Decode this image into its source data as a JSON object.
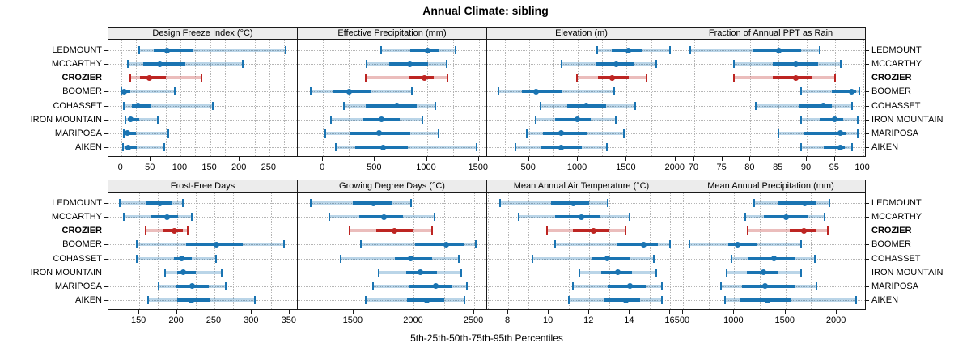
{
  "title": "Annual Climate: sibling",
  "xlabel": "5th-25th-50th-75th-95th Percentiles",
  "sites": [
    "LEDMOUNT",
    "MCCARTHY",
    "CROZIER",
    "BOOMER",
    "COHASSET",
    "IRON MOUNTAIN",
    "MARIPOSA",
    "AIKEN"
  ],
  "highlight_site": "CROZIER",
  "colors": {
    "series": "#1a74b2",
    "highlight": "#bd2522",
    "grid": "#b5b5b5",
    "strip_bg": "#ececec",
    "border": "#1a1a1a",
    "text": "#000000"
  },
  "chart_data": {
    "type": "dotplot-percentiles",
    "percentiles": [
      5,
      25,
      50,
      75,
      95
    ],
    "legend": "CROZIER highlighted in red; all other sites in blue",
    "panels": [
      {
        "title": "Design Freeze Index (°C)",
        "xticks": [
          0,
          50,
          100,
          150,
          200,
          250
        ],
        "grid_step": 25,
        "xlim": [
          -20,
          298
        ],
        "series": [
          {
            "name": "LEDMOUNT",
            "p": [
              30,
              55,
              78,
              122,
              278
            ]
          },
          {
            "name": "MCCARTHY",
            "p": [
              12,
              38,
              65,
              108,
              205
            ]
          },
          {
            "name": "CROZIER",
            "p": [
              15,
              32,
              48,
              75,
              135
            ]
          },
          {
            "name": "BOOMER",
            "p": [
              0,
              2,
              5,
              15,
              90
            ]
          },
          {
            "name": "COHASSET",
            "p": [
              5,
              18,
              28,
              50,
              155
            ]
          },
          {
            "name": "IRON MOUNTAIN",
            "p": [
              7,
              12,
              16,
              30,
              62
            ]
          },
          {
            "name": "MARIPOSA",
            "p": [
              4,
              8,
              11,
              25,
              80
            ]
          },
          {
            "name": "AIKEN",
            "p": [
              3,
              7,
              12,
              26,
              73
            ]
          }
        ]
      },
      {
        "title": "Effective Precipitation (mm)",
        "xticks": [
          0,
          500,
          1000,
          1500
        ],
        "grid_step": 250,
        "xlim": [
          -235,
          1580
        ],
        "series": [
          {
            "name": "LEDMOUNT",
            "p": [
              560,
              840,
              1010,
              1120,
              1280
            ]
          },
          {
            "name": "MCCARTHY",
            "p": [
              420,
              640,
              835,
              1010,
              1190
            ]
          },
          {
            "name": "CROZIER",
            "p": [
              410,
              830,
              975,
              1065,
              1200
            ]
          },
          {
            "name": "BOOMER",
            "p": [
              -115,
              100,
              255,
              465,
              855
            ]
          },
          {
            "name": "COHASSET",
            "p": [
              205,
              410,
              710,
              905,
              1080
            ]
          },
          {
            "name": "IRON MOUNTAIN",
            "p": [
              75,
              390,
              565,
              740,
              960
            ]
          },
          {
            "name": "MARIPOSA",
            "p": [
              20,
              255,
              540,
              840,
              1110
            ]
          },
          {
            "name": "AIKEN",
            "p": [
              125,
              310,
              580,
              820,
              1480
            ]
          }
        ]
      },
      {
        "title": "Elevation (m)",
        "xticks": [
          500,
          1000,
          1500,
          2000
        ],
        "grid_step": 250,
        "xlim": [
          80,
          2010
        ],
        "series": [
          {
            "name": "LEDMOUNT",
            "p": [
              1200,
              1350,
              1515,
              1660,
              1945
            ]
          },
          {
            "name": "MCCARTHY",
            "p": [
              830,
              1180,
              1390,
              1570,
              1800
            ]
          },
          {
            "name": "CROZIER",
            "p": [
              990,
              1210,
              1355,
              1520,
              1705
            ]
          },
          {
            "name": "BOOMER",
            "p": [
              190,
              430,
              570,
              840,
              1370
            ]
          },
          {
            "name": "COHASSET",
            "p": [
              620,
              890,
              1085,
              1290,
              1590
            ]
          },
          {
            "name": "IRON MOUNTAIN",
            "p": [
              565,
              770,
              995,
              1130,
              1385
            ]
          },
          {
            "name": "MARIPOSA",
            "p": [
              475,
              640,
              830,
              1100,
              1475
            ]
          },
          {
            "name": "AIKEN",
            "p": [
              360,
              620,
              830,
              1040,
              1300
            ]
          }
        ]
      },
      {
        "title": "Fraction of Annual PPT as Rain",
        "xticks": [
          70,
          75,
          80,
          85,
          90,
          95,
          100
        ],
        "grid_step": 5,
        "xlim": [
          67,
          100.5
        ],
        "series": [
          {
            "name": "LEDMOUNT",
            "p": [
              69.3,
              80.5,
              85,
              89,
              92.3
            ]
          },
          {
            "name": "MCCARTHY",
            "p": [
              77,
              84,
              88,
              92,
              96
            ]
          },
          {
            "name": "CROZIER",
            "p": [
              77,
              84,
              88,
              91,
              95
            ]
          },
          {
            "name": "BOOMER",
            "p": [
              89,
              94.5,
              98,
              98.8,
              99.4
            ]
          },
          {
            "name": "COHASSET",
            "p": [
              81,
              88.5,
              93,
              94.5,
              98
            ]
          },
          {
            "name": "IRON MOUNTAIN",
            "p": [
              89,
              92.5,
              95,
              96.5,
              99
            ]
          },
          {
            "name": "MARIPOSA",
            "p": [
              85,
              89.5,
              96,
              97,
              99
            ]
          },
          {
            "name": "AIKEN",
            "p": [
              89,
              93,
              96,
              96.8,
              98
            ]
          }
        ]
      },
      {
        "title": "Frost-Free Days",
        "xticks": [
          150,
          200,
          250,
          300,
          350
        ],
        "grid_step": 25,
        "xlim": [
          110,
          361
        ],
        "series": [
          {
            "name": "LEDMOUNT",
            "p": [
              124,
              160,
              177,
              193,
              208
            ]
          },
          {
            "name": "MCCARTHY",
            "p": [
              129,
              165,
              187,
              202,
              220
            ]
          },
          {
            "name": "CROZIER",
            "p": [
              159,
              181,
              197,
              208,
              214
            ]
          },
          {
            "name": "BOOMER",
            "p": [
              147,
              212,
              253,
              288,
              343
            ]
          },
          {
            "name": "COHASSET",
            "p": [
              147,
              196,
              206,
              220,
              252
            ]
          },
          {
            "name": "IRON MOUNTAIN",
            "p": [
              184,
              200,
              209,
              225,
              260
            ]
          },
          {
            "name": "MARIPOSA",
            "p": [
              176,
              198,
              220,
              242,
              265
            ]
          },
          {
            "name": "AIKEN",
            "p": [
              162,
              200,
              219,
              245,
              304
            ]
          }
        ]
      },
      {
        "title": "Growing Degree Days (°C)",
        "xticks": [
          1500,
          2000,
          2500
        ],
        "grid_step": 250,
        "xlim": [
          1045,
          2607
        ],
        "series": [
          {
            "name": "LEDMOUNT",
            "p": [
              1145,
              1495,
              1665,
              1815,
              1975
            ]
          },
          {
            "name": "MCCARTHY",
            "p": [
              1300,
              1550,
              1755,
              1910,
              2170
            ]
          },
          {
            "name": "CROZIER",
            "p": [
              1470,
              1690,
              1840,
              2000,
              2150
            ]
          },
          {
            "name": "BOOMER",
            "p": [
              1560,
              2010,
              2270,
              2420,
              2510
            ]
          },
          {
            "name": "COHASSET",
            "p": [
              1395,
              1840,
              1975,
              2150,
              2370
            ]
          },
          {
            "name": "IRON MOUNTAIN",
            "p": [
              1710,
              1935,
              2055,
              2190,
              2390
            ]
          },
          {
            "name": "MARIPOSA",
            "p": [
              1665,
              1960,
              2180,
              2310,
              2440
            ]
          },
          {
            "name": "AIKEN",
            "p": [
              1600,
              1945,
              2105,
              2250,
              2420
            ]
          }
        ]
      },
      {
        "title": "Mean Annual Air Temperature (°C)",
        "xticks": [
          8,
          10,
          12,
          14,
          16
        ],
        "grid_step": 1,
        "xlim": [
          7.0,
          16.3
        ],
        "series": [
          {
            "name": "LEDMOUNT",
            "p": [
              7.6,
              10.1,
              11.2,
              12.0,
              12.9
            ]
          },
          {
            "name": "MCCARTHY",
            "p": [
              8.5,
              10.3,
              11.6,
              12.5,
              14.0
            ]
          },
          {
            "name": "CROZIER",
            "p": [
              9.9,
              11.2,
              12.2,
              13.0,
              13.8
            ]
          },
          {
            "name": "BOOMER",
            "p": [
              10.3,
              13.4,
              14.7,
              15.4,
              16.0
            ]
          },
          {
            "name": "COHASSET",
            "p": [
              9.2,
              12.1,
              12.9,
              14.0,
              15.2
            ]
          },
          {
            "name": "IRON MOUNTAIN",
            "p": [
              11.5,
              12.6,
              13.4,
              14.1,
              15.3
            ]
          },
          {
            "name": "MARIPOSA",
            "p": [
              11.2,
              12.9,
              14.0,
              14.8,
              15.6
            ]
          },
          {
            "name": "AIKEN",
            "p": [
              11.0,
              12.7,
              13.8,
              14.5,
              15.6
            ]
          }
        ]
      },
      {
        "title": "Mean Annual Precipitation (mm)",
        "xticks": [
          500,
          1000,
          1500,
          2000
        ],
        "grid_step": 250,
        "xlim": [
          445,
          2283
        ],
        "series": [
          {
            "name": "LEDMOUNT",
            "p": [
              1195,
              1425,
              1690,
              1800,
              1930
            ]
          },
          {
            "name": "MCCARTHY",
            "p": [
              1105,
              1290,
              1505,
              1720,
              1880
            ]
          },
          {
            "name": "CROZIER",
            "p": [
              1130,
              1540,
              1680,
              1800,
              1910
            ]
          },
          {
            "name": "BOOMER",
            "p": [
              565,
              940,
              1030,
              1220,
              1650
            ]
          },
          {
            "name": "COHASSET",
            "p": [
              975,
              1130,
              1390,
              1590,
              1785
            ]
          },
          {
            "name": "IRON MOUNTAIN",
            "p": [
              930,
              1120,
              1285,
              1420,
              1655
            ]
          },
          {
            "name": "MARIPOSA",
            "p": [
              870,
              1075,
              1300,
              1590,
              1805
            ]
          },
          {
            "name": "AIKEN",
            "p": [
              910,
              1055,
              1325,
              1555,
              2185
            ]
          }
        ]
      }
    ]
  }
}
